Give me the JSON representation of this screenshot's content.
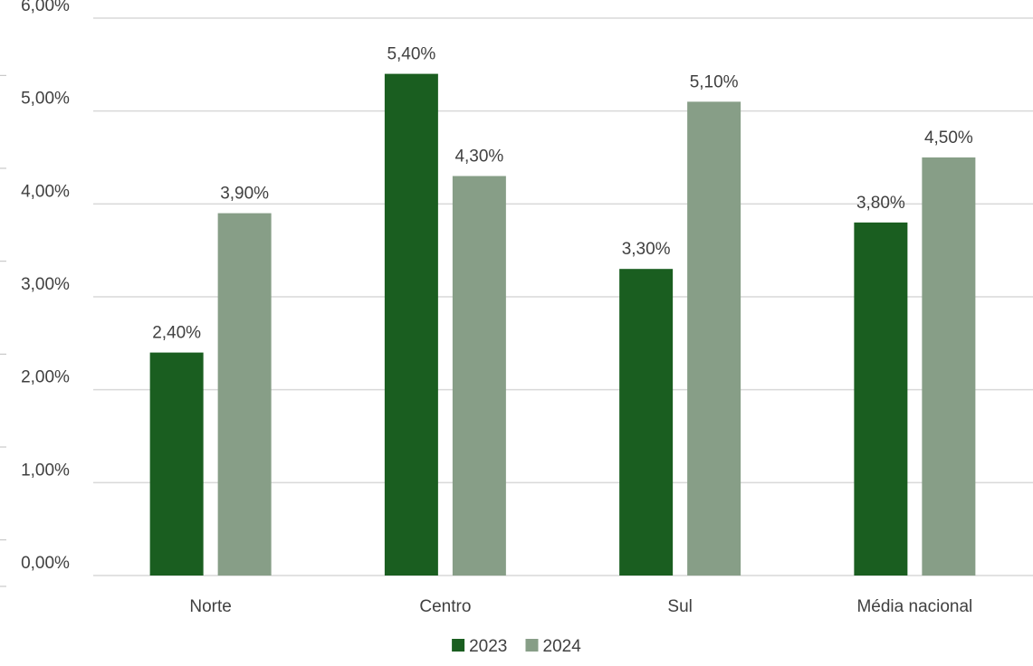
{
  "chart_data": {
    "type": "bar",
    "categories": [
      "Norte",
      "Centro",
      "Sul",
      "Média nacional"
    ],
    "series": [
      {
        "name": "2023",
        "values": [
          2.4,
          5.4,
          3.3,
          3.8
        ],
        "labels": [
          "2,40%",
          "5,40%",
          "3,30%",
          "3,80%"
        ],
        "color": "#1a5e20"
      },
      {
        "name": "2024",
        "values": [
          3.9,
          4.3,
          5.1,
          4.5
        ],
        "labels": [
          "3,90%",
          "4,30%",
          "5,10%",
          "4,50%"
        ],
        "color": "#879e87"
      }
    ],
    "ylim": [
      0,
      6
    ],
    "yticks": [
      0,
      1,
      2,
      3,
      4,
      5,
      6
    ],
    "ytick_labels": [
      "0,00%",
      "1,00%",
      "2,00%",
      "3,00%",
      "4,00%",
      "5,00%",
      "6,00%"
    ],
    "title": "",
    "xlabel": "",
    "ylabel": "",
    "grid": true,
    "legend_position": "bottom"
  }
}
